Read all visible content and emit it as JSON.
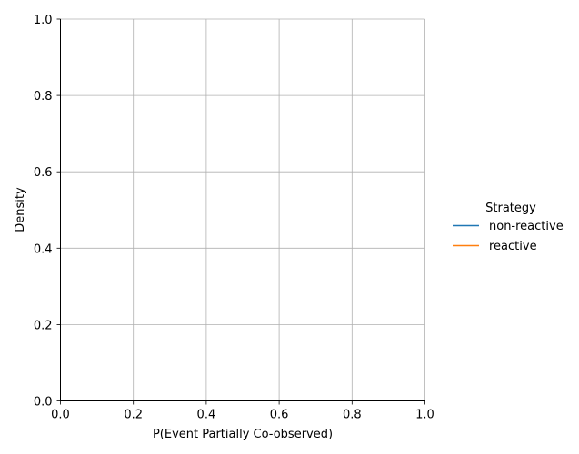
{
  "chart_data": {
    "type": "line",
    "title": "",
    "xlabel": "P(Event Partially Co-observed)",
    "ylabel": "Density",
    "xlim": [
      0.0,
      1.0
    ],
    "ylim": [
      0.0,
      1.0
    ],
    "x_ticks": [
      "0.0",
      "0.2",
      "0.4",
      "0.6",
      "0.8",
      "1.0"
    ],
    "y_ticks": [
      "0.0",
      "0.2",
      "0.4",
      "0.6",
      "0.8",
      "1.0"
    ],
    "grid": true,
    "legend": {
      "title": "Strategy",
      "placement": "right"
    },
    "series": [
      {
        "name": "non-reactive",
        "color": "#1f77b4",
        "x": [],
        "y": []
      },
      {
        "name": "reactive",
        "color": "#ff7f0e",
        "x": [],
        "y": []
      }
    ]
  }
}
